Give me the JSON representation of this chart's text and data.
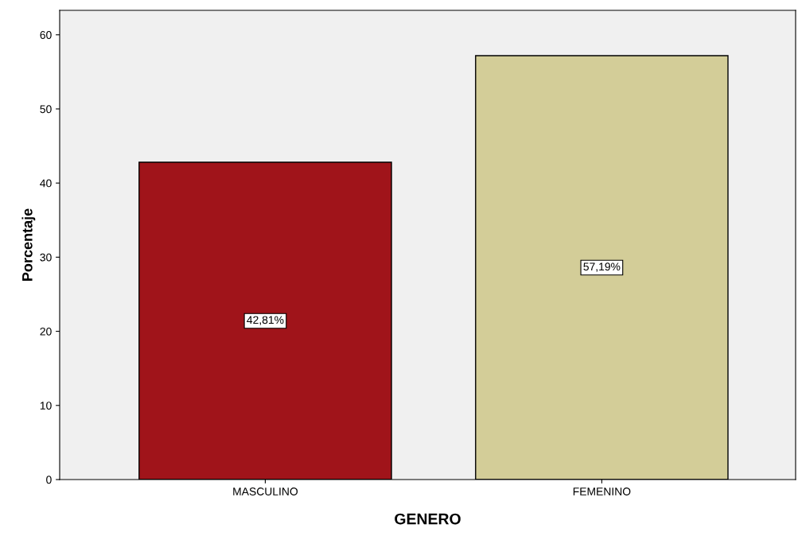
{
  "chart_data": {
    "type": "bar",
    "xlabel": "GENERO",
    "ylabel": "Porcentaje",
    "categories": [
      "MASCULINO",
      "FEMENINO"
    ],
    "values": [
      42.81,
      57.19
    ],
    "colors": [
      "#a0141a",
      "#d3cd98"
    ],
    "value_labels": [
      "42,81%",
      "57,19%"
    ],
    "ylim": [
      0,
      63.3
    ],
    "yticks": [
      0,
      10,
      20,
      30,
      40,
      50,
      60
    ],
    "grid": false
  }
}
